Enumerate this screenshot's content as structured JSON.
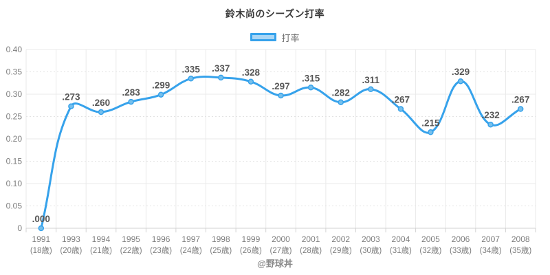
{
  "title": "鈴木尚のシーズン打率",
  "legend": {
    "label": "打率"
  },
  "footer": "@野球丼",
  "colors": {
    "line": "#36a2eb",
    "point_fill": "#77c0ec",
    "legend_fill": "#a9d6f5",
    "legend_border": "#36a2eb",
    "grid": "#e9e9e9",
    "grid_minor": "#e3e3e3",
    "axis_line": "#d2d2d2",
    "tick_text": "#7d7d7d",
    "data_label": "#565656",
    "title_text": "#3a3a3a",
    "footer_text": "#8a8a8a"
  },
  "chart_data": {
    "type": "line",
    "title": "鈴木尚のシーズン打率",
    "series_name": "打率",
    "legend_position": "top",
    "grid": true,
    "line_tension": 0.4,
    "ylim": [
      0,
      0.4
    ],
    "x": [
      "1991",
      "1993",
      "1994",
      "1995",
      "1996",
      "1997",
      "1998",
      "1999",
      "2000",
      "2001",
      "2002",
      "2003",
      "2004",
      "2005",
      "2006",
      "2007",
      "2008"
    ],
    "x_sub": [
      "(18歳)",
      "(20歳)",
      "(21歳)",
      "(22歳)",
      "(23歳)",
      "(24歳)",
      "(25歳)",
      "(26歳)",
      "(27歳)",
      "(28歳)",
      "(29歳)",
      "(30歳)",
      "(31歳)",
      "(32歳)",
      "(33歳)",
      "(34歳)",
      "(35歳)"
    ],
    "values": [
      0.0,
      0.273,
      0.26,
      0.283,
      0.299,
      0.335,
      0.337,
      0.328,
      0.297,
      0.315,
      0.282,
      0.311,
      0.267,
      0.215,
      0.329,
      0.232,
      0.267
    ],
    "point_labels": [
      ".000",
      ".273",
      ".260",
      ".283",
      ".299",
      ".335",
      ".337",
      ".328",
      ".297",
      ".315",
      ".282",
      ".311",
      ".267",
      ".215",
      ".329",
      ".232",
      ".267"
    ],
    "yticks": [
      {
        "v": 0.4,
        "label": "0.40"
      },
      {
        "v": 0.35,
        "label": "0.35"
      },
      {
        "v": 0.3,
        "label": "0.30"
      },
      {
        "v": 0.25,
        "label": "0.25"
      },
      {
        "v": 0.2,
        "label": "0.20"
      },
      {
        "v": 0.15,
        "label": "0.15"
      },
      {
        "v": 0.1,
        "label": "0.10"
      },
      {
        "v": 0.05,
        "label": "0.05"
      },
      {
        "v": 0.0,
        "label": "0"
      }
    ]
  }
}
